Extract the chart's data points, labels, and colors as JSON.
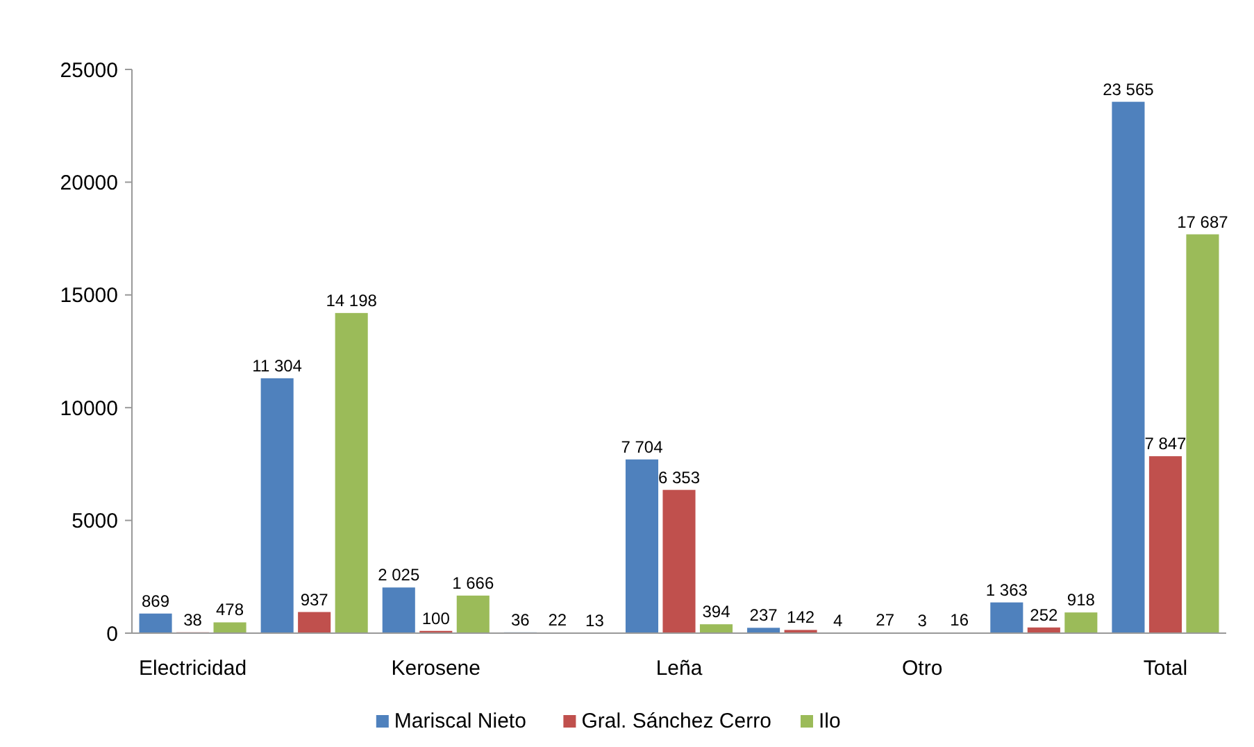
{
  "chart_data": {
    "type": "bar",
    "categories": [
      "Electricidad",
      null,
      "Kerosene",
      null,
      "Leña",
      null,
      "Otro",
      null,
      "Total"
    ],
    "series": [
      {
        "name": "Mariscal Nieto",
        "color": "#4f81bd",
        "values": [
          869,
          11304,
          2025,
          36,
          7704,
          237,
          27,
          1363,
          23565
        ],
        "value_labels": [
          "869",
          "11 304",
          "2 025",
          "36",
          "7 704",
          "237",
          "27",
          "1 363",
          "23 565"
        ]
      },
      {
        "name": "Gral. Sánchez Cerro",
        "color": "#c0504d",
        "values": [
          38,
          937,
          100,
          22,
          6353,
          142,
          3,
          252,
          7847
        ],
        "value_labels": [
          "38",
          "937",
          "100",
          "22",
          "6 353",
          "142",
          "3",
          "252",
          "7 847"
        ]
      },
      {
        "name": "Ilo",
        "color": "#9bbb59",
        "values": [
          478,
          14198,
          1666,
          13,
          394,
          4,
          16,
          918,
          17687
        ],
        "value_labels": [
          "478",
          "14 198",
          "1 666",
          "13",
          "394",
          "4",
          "16",
          "918",
          "17 687"
        ]
      }
    ],
    "ylim": [
      0,
      25000
    ],
    "yticks": [
      0,
      5000,
      10000,
      15000,
      20000,
      25000
    ],
    "grid": false,
    "legend": "bottom"
  }
}
